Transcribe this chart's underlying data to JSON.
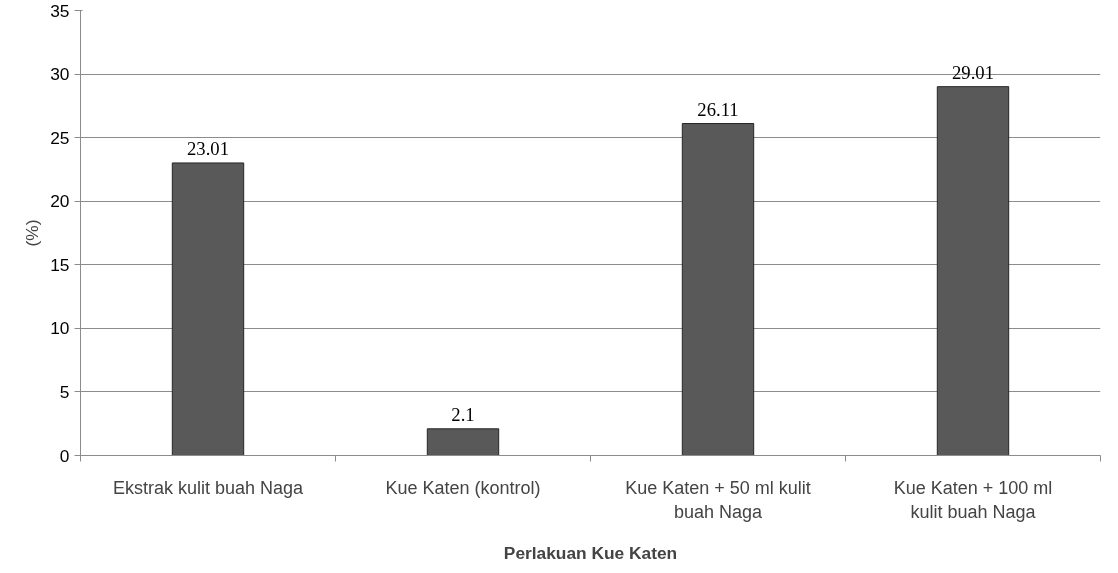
{
  "chart_data": {
    "type": "bar",
    "xlabel": "Perlakuan Kue Katen",
    "ylabel": "(%)",
    "categories": [
      "Ekstrak kulit buah Naga",
      "Kue Katen (kontrol)",
      "Kue Katen + 50 ml kulit buah Naga",
      "Kue Katen + 100 ml kulit buah Naga"
    ],
    "values": [
      23.01,
      2.1,
      26.11,
      29.01
    ],
    "color": "#595959",
    "ylim": [
      0,
      35
    ],
    "yticks": [
      0,
      5,
      10,
      15,
      20,
      25,
      30,
      35
    ],
    "grid": "y",
    "data_labels": true
  }
}
